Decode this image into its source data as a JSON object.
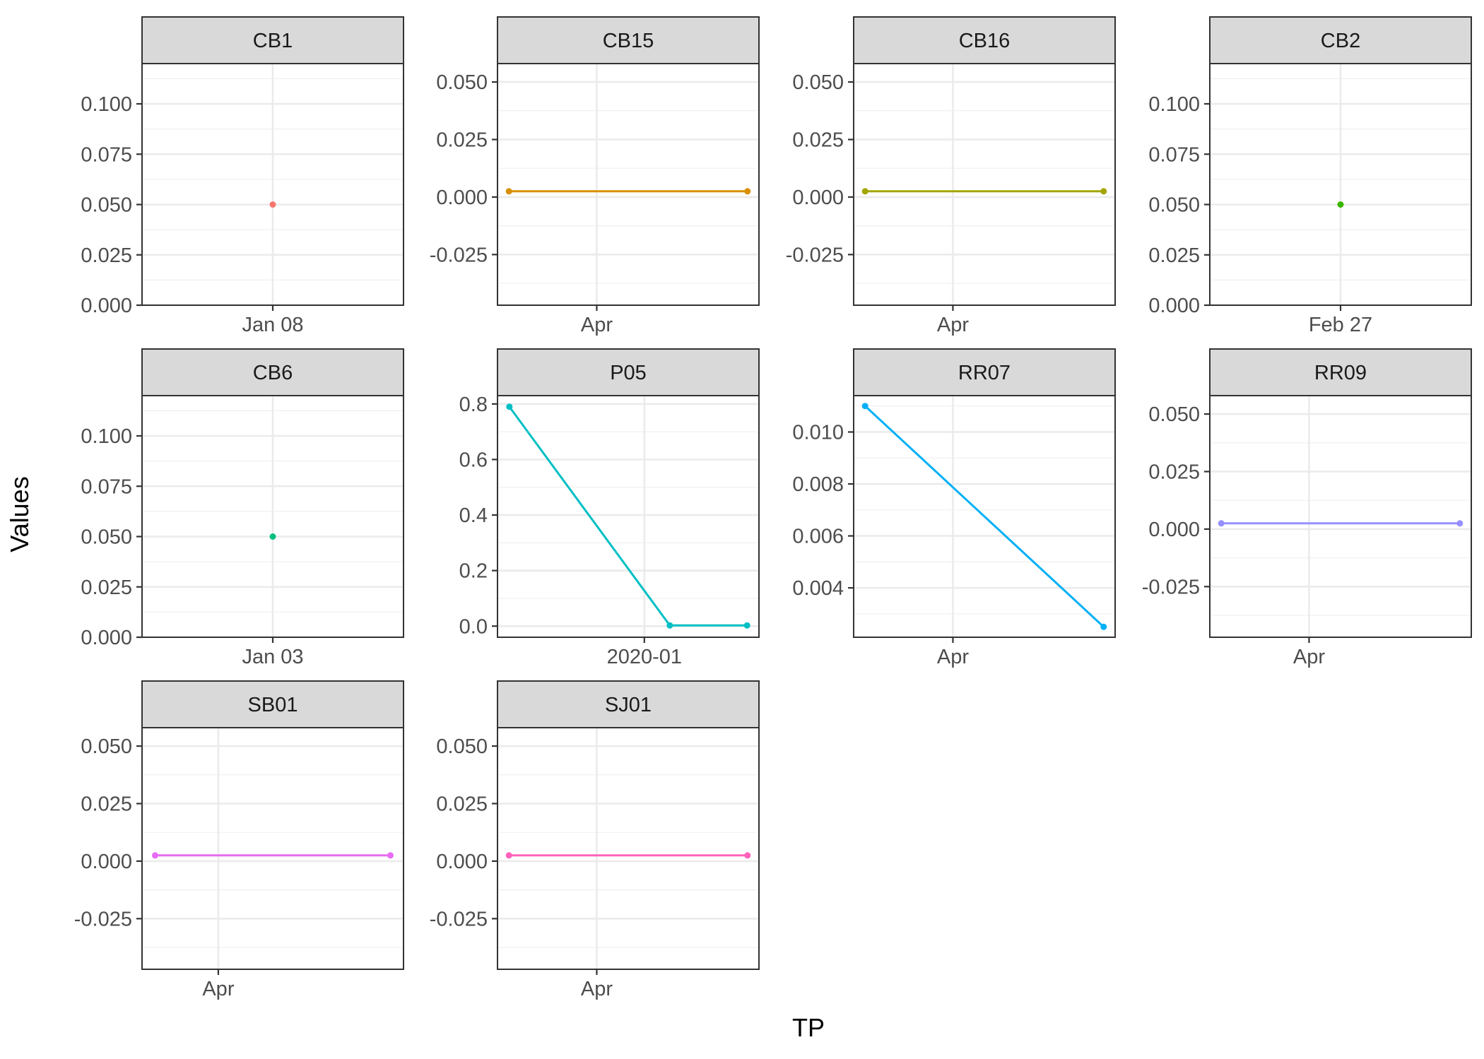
{
  "chart_data": {
    "type": "line",
    "xlabel": "TP",
    "ylabel": "Values",
    "grid": true,
    "legend": "none",
    "panels": [
      {
        "name": "CB1",
        "color": "#F8766D",
        "xlim": [
          "2019-01-07T12:00",
          "2019-01-08T12:00"
        ],
        "xticks": [
          {
            "x": "2019-01-08T00:00",
            "label": "Jan 08"
          }
        ],
        "ylim": [
          0,
          0.12
        ],
        "yticks": [
          {
            "v": 0.0,
            "label": "0.000"
          },
          {
            "v": 0.025,
            "label": "0.025"
          },
          {
            "v": 0.05,
            "label": "0.050"
          },
          {
            "v": 0.075,
            "label": "0.075"
          },
          {
            "v": 0.1,
            "label": "0.100"
          }
        ],
        "points": [
          {
            "x": "2019-01-08T00:00",
            "y": 0.05
          }
        ]
      },
      {
        "name": "CB15",
        "color": "#D89000",
        "xlim": [
          "2019-02-08",
          "2019-06-25"
        ],
        "xticks": [
          {
            "x": "2019-04-01",
            "label": "Apr"
          }
        ],
        "ylim": [
          -0.047,
          0.058
        ],
        "yticks": [
          {
            "v": -0.025,
            "label": "-0.025"
          },
          {
            "v": 0.0,
            "label": "0.000"
          },
          {
            "v": 0.025,
            "label": "0.025"
          },
          {
            "v": 0.05,
            "label": "0.050"
          }
        ],
        "points": [
          {
            "x": "2019-02-14",
            "y": 0.0025
          },
          {
            "x": "2019-06-19",
            "y": 0.0025
          }
        ]
      },
      {
        "name": "CB16",
        "color": "#A3A500",
        "xlim": [
          "2019-02-08",
          "2019-06-25"
        ],
        "xticks": [
          {
            "x": "2019-04-01",
            "label": "Apr"
          }
        ],
        "ylim": [
          -0.047,
          0.058
        ],
        "yticks": [
          {
            "v": -0.025,
            "label": "-0.025"
          },
          {
            "v": 0.0,
            "label": "0.000"
          },
          {
            "v": 0.025,
            "label": "0.025"
          },
          {
            "v": 0.05,
            "label": "0.050"
          }
        ],
        "points": [
          {
            "x": "2019-02-14",
            "y": 0.0025
          },
          {
            "x": "2019-06-19",
            "y": 0.0025
          }
        ]
      },
      {
        "name": "CB2",
        "color": "#39B600",
        "xlim": [
          "2019-02-26T12:00",
          "2019-02-27T12:00"
        ],
        "xticks": [
          {
            "x": "2019-02-27T00:00",
            "label": "Feb 27"
          }
        ],
        "ylim": [
          0,
          0.12
        ],
        "yticks": [
          {
            "v": 0.0,
            "label": "0.000"
          },
          {
            "v": 0.025,
            "label": "0.025"
          },
          {
            "v": 0.05,
            "label": "0.050"
          },
          {
            "v": 0.075,
            "label": "0.075"
          },
          {
            "v": 0.1,
            "label": "0.100"
          }
        ],
        "points": [
          {
            "x": "2019-02-27T00:00",
            "y": 0.05
          }
        ]
      },
      {
        "name": "CB6",
        "color": "#00BF7D",
        "xlim": [
          "2019-01-02T12:00",
          "2019-01-03T12:00"
        ],
        "xticks": [
          {
            "x": "2019-01-03T00:00",
            "label": "Jan 03"
          }
        ],
        "ylim": [
          0,
          0.12
        ],
        "yticks": [
          {
            "v": 0.0,
            "label": "0.000"
          },
          {
            "v": 0.025,
            "label": "0.025"
          },
          {
            "v": 0.05,
            "label": "0.050"
          },
          {
            "v": 0.075,
            "label": "0.075"
          },
          {
            "v": 0.1,
            "label": "0.100"
          }
        ],
        "points": [
          {
            "x": "2019-01-03T00:00",
            "y": 0.05
          }
        ]
      },
      {
        "name": "P05",
        "color": "#00BFC4",
        "xlim": [
          "2019-07-12",
          "2020-05-15"
        ],
        "xticks": [
          {
            "x": "2020-01-01",
            "label": "2020-01"
          }
        ],
        "ylim": [
          -0.04,
          0.83
        ],
        "yticks": [
          {
            "v": 0.0,
            "label": "0.0"
          },
          {
            "v": 0.2,
            "label": "0.2"
          },
          {
            "v": 0.4,
            "label": "0.4"
          },
          {
            "v": 0.6,
            "label": "0.6"
          },
          {
            "v": 0.8,
            "label": "0.8"
          }
        ],
        "points": [
          {
            "x": "2019-07-26",
            "y": 0.79
          },
          {
            "x": "2020-01-31",
            "y": 0.0025
          },
          {
            "x": "2020-05-01",
            "y": 0.0025
          }
        ]
      },
      {
        "name": "RR07",
        "color": "#00B0F6",
        "xlim": [
          "2019-02-08",
          "2019-06-25"
        ],
        "xticks": [
          {
            "x": "2019-04-01",
            "label": "Apr"
          }
        ],
        "ylim": [
          0.0021,
          0.0114
        ],
        "yticks": [
          {
            "v": 0.004,
            "label": "0.004"
          },
          {
            "v": 0.006,
            "label": "0.006"
          },
          {
            "v": 0.008,
            "label": "0.008"
          },
          {
            "v": 0.01,
            "label": "0.010"
          }
        ],
        "points": [
          {
            "x": "2019-02-14",
            "y": 0.011
          },
          {
            "x": "2019-06-19",
            "y": 0.0025
          }
        ]
      },
      {
        "name": "RR09",
        "color": "#9590FF",
        "xlim": [
          "2019-02-08",
          "2019-06-25"
        ],
        "xticks": [
          {
            "x": "2019-04-01",
            "label": "Apr"
          }
        ],
        "ylim": [
          -0.047,
          0.058
        ],
        "yticks": [
          {
            "v": -0.025,
            "label": "-0.025"
          },
          {
            "v": 0.0,
            "label": "0.000"
          },
          {
            "v": 0.025,
            "label": "0.025"
          },
          {
            "v": 0.05,
            "label": "0.050"
          }
        ],
        "points": [
          {
            "x": "2019-02-14",
            "y": 0.0025
          },
          {
            "x": "2019-06-19",
            "y": 0.0025
          }
        ]
      },
      {
        "name": "SB01",
        "color": "#E76BF3",
        "xlim": [
          "2019-02-25",
          "2019-06-25"
        ],
        "xticks": [
          {
            "x": "2019-04-01",
            "label": "Apr"
          }
        ],
        "ylim": [
          -0.047,
          0.058
        ],
        "yticks": [
          {
            "v": -0.025,
            "label": "-0.025"
          },
          {
            "v": 0.0,
            "label": "0.000"
          },
          {
            "v": 0.025,
            "label": "0.025"
          },
          {
            "v": 0.05,
            "label": "0.050"
          }
        ],
        "points": [
          {
            "x": "2019-03-03",
            "y": 0.0025
          },
          {
            "x": "2019-06-19",
            "y": 0.0025
          }
        ]
      },
      {
        "name": "SJ01",
        "color": "#FF62BC",
        "xlim": [
          "2019-02-08",
          "2019-06-25"
        ],
        "xticks": [
          {
            "x": "2019-04-01",
            "label": "Apr"
          }
        ],
        "ylim": [
          -0.047,
          0.058
        ],
        "yticks": [
          {
            "v": -0.025,
            "label": "-0.025"
          },
          {
            "v": 0.0,
            "label": "0.000"
          },
          {
            "v": 0.025,
            "label": "0.025"
          },
          {
            "v": 0.05,
            "label": "0.050"
          }
        ],
        "points": [
          {
            "x": "2019-02-14",
            "y": 0.0025
          },
          {
            "x": "2019-06-19",
            "y": 0.0025
          }
        ]
      }
    ]
  }
}
